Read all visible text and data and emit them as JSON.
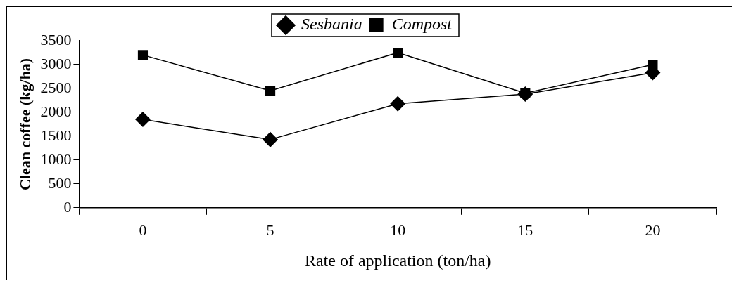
{
  "chart_data": {
    "type": "line",
    "xlabel": "Rate of application (ton/ha)",
    "ylabel": "Clean coffee (kg/ha)",
    "categories": [
      "0",
      "5",
      "10",
      "15",
      "20"
    ],
    "series": [
      {
        "name": "Sesbania",
        "color": "#000000",
        "marker": "diamond",
        "values": [
          1850,
          1430,
          2180,
          2380,
          2830
        ]
      },
      {
        "name": "Compost",
        "color": "#000000",
        "marker": "square",
        "values": [
          3200,
          2450,
          3250,
          2400,
          3000
        ]
      }
    ],
    "ylim": [
      0,
      3500
    ],
    "yticks": [
      0,
      500,
      1000,
      1500,
      2000,
      2500,
      3000,
      3500
    ],
    "grid": false,
    "legend": "top",
    "line_style": "solid"
  }
}
